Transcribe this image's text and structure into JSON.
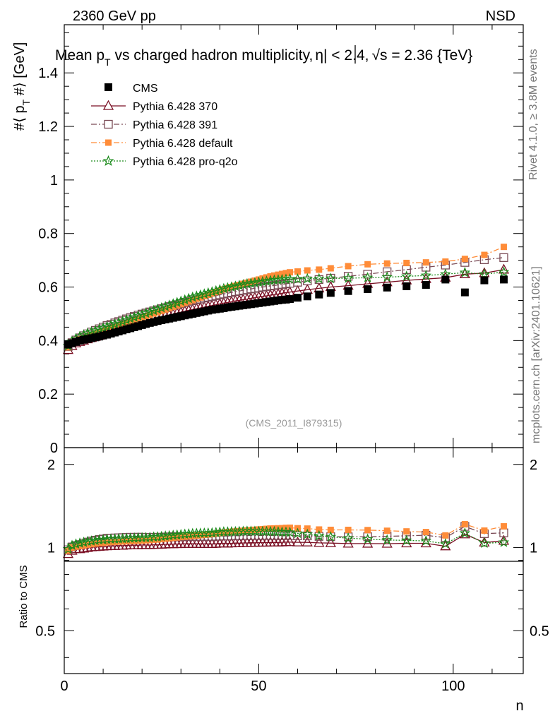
{
  "header": {
    "left": "2360 GeV pp",
    "right": "NSD"
  },
  "side": {
    "rivet": "Rivet 4.1.0, ≥ 3.8M events",
    "mcplots": "mcplots.cern.ch [arXiv:2401.10621]"
  },
  "reference": "(CMS_2011_I879315)",
  "chart_data": {
    "type": "scatter",
    "title": "Mean p_T vs charged hadron multiplicity, |η| < 2.4, √s = 2.36 {TeV}",
    "title_parts": {
      "a": "Mean p",
      "a_sub": "T",
      "b": " vs charged hadron multiplicity,",
      "c": "η| < 2.4,",
      "d": "√s = 2.36 {TeV}"
    },
    "xlabel": "n",
    "ylabel": "#⟨ p_T #⟩ [GeV]",
    "ylabel_parts": {
      "a": "#⟨ p",
      "sub": "T",
      "b": " #⟩ [GeV]"
    },
    "ratio_ylabel": "Ratio to CMS",
    "xlim": [
      0,
      118
    ],
    "ylim": [
      0,
      1.58
    ],
    "ratio_ylim": [
      0.35,
      2.3
    ],
    "x_ticks": [
      0,
      50,
      100
    ],
    "y_ticks": [
      "0",
      "0.2",
      "0.4",
      "0.6",
      "0.8",
      "1",
      "1.2",
      "1.4"
    ],
    "ratio_ticks": [
      "0.5",
      "1",
      "2"
    ],
    "x": [
      1,
      2,
      3,
      4,
      5,
      6,
      7,
      8,
      9,
      10,
      11,
      12,
      13,
      14,
      15,
      16,
      17,
      18,
      19,
      20,
      21,
      22,
      23,
      24,
      25,
      26,
      27,
      28,
      29,
      30,
      31,
      32,
      33,
      34,
      35,
      36,
      37,
      38,
      39,
      40,
      41,
      42,
      43,
      44,
      45,
      46,
      47,
      48,
      49,
      50,
      51,
      52,
      53,
      54,
      55,
      56,
      57,
      58,
      60,
      62.5,
      65.5,
      68.5,
      73,
      78,
      83,
      88,
      93,
      98,
      103,
      108,
      113
    ],
    "series": [
      {
        "name": "CMS",
        "color": "#000000",
        "marker": "filled-square",
        "values": [
          0.385,
          0.39,
          0.395,
          0.4,
          0.403,
          0.406,
          0.409,
          0.412,
          0.415,
          0.419,
          0.422,
          0.426,
          0.43,
          0.434,
          0.438,
          0.442,
          0.446,
          0.45,
          0.454,
          0.458,
          0.462,
          0.466,
          0.469,
          0.473,
          0.476,
          0.479,
          0.482,
          0.485,
          0.488,
          0.491,
          0.494,
          0.497,
          0.5,
          0.503,
          0.506,
          0.509,
          0.512,
          0.515,
          0.517,
          0.519,
          0.521,
          0.524,
          0.526,
          0.528,
          0.53,
          0.532,
          0.534,
          0.536,
          0.538,
          0.54,
          0.542,
          0.544,
          0.546,
          0.548,
          0.55,
          0.552,
          0.553,
          0.555,
          0.56,
          0.565,
          0.572,
          0.578,
          0.585,
          0.592,
          0.598,
          0.603,
          0.608,
          0.628,
          0.58,
          0.625,
          0.628
        ]
      },
      {
        "name": "Pythia 6.428 370",
        "color": "#7a0f23",
        "marker": "open-triangle",
        "line": "solid",
        "values": [
          0.365,
          0.38,
          0.39,
          0.395,
          0.4,
          0.405,
          0.41,
          0.414,
          0.418,
          0.423,
          0.427,
          0.432,
          0.436,
          0.441,
          0.445,
          0.45,
          0.455,
          0.459,
          0.463,
          0.468,
          0.472,
          0.476,
          0.48,
          0.484,
          0.488,
          0.492,
          0.496,
          0.499,
          0.503,
          0.506,
          0.51,
          0.513,
          0.516,
          0.519,
          0.522,
          0.525,
          0.528,
          0.531,
          0.534,
          0.537,
          0.54,
          0.542,
          0.545,
          0.548,
          0.55,
          0.553,
          0.555,
          0.558,
          0.56,
          0.563,
          0.565,
          0.567,
          0.57,
          0.572,
          0.574,
          0.577,
          0.579,
          0.581,
          0.585,
          0.59,
          0.595,
          0.6,
          0.605,
          0.612,
          0.618,
          0.625,
          0.63,
          0.635,
          0.648,
          0.652,
          0.665
        ]
      },
      {
        "name": "Pythia 6.428 391",
        "color": "#7a4a55",
        "marker": "open-square",
        "line": "dashdot",
        "values": [
          0.378,
          0.392,
          0.402,
          0.41,
          0.418,
          0.425,
          0.432,
          0.438,
          0.444,
          0.45,
          0.456,
          0.461,
          0.466,
          0.471,
          0.476,
          0.481,
          0.486,
          0.49,
          0.495,
          0.499,
          0.503,
          0.507,
          0.511,
          0.515,
          0.519,
          0.523,
          0.527,
          0.531,
          0.534,
          0.538,
          0.542,
          0.545,
          0.549,
          0.552,
          0.555,
          0.559,
          0.562,
          0.565,
          0.568,
          0.571,
          0.574,
          0.577,
          0.58,
          0.583,
          0.585,
          0.588,
          0.59,
          0.593,
          0.595,
          0.597,
          0.6,
          0.602,
          0.604,
          0.606,
          0.608,
          0.61,
          0.612,
          0.614,
          0.618,
          0.623,
          0.628,
          0.633,
          0.64,
          0.648,
          0.657,
          0.665,
          0.674,
          0.682,
          0.692,
          0.702,
          0.71
        ]
      },
      {
        "name": "Pythia 6.428 default",
        "color": "#ff8c38",
        "marker": "filled-square",
        "line": "dashdot",
        "values": [
          0.375,
          0.39,
          0.398,
          0.405,
          0.41,
          0.416,
          0.421,
          0.426,
          0.431,
          0.436,
          0.441,
          0.446,
          0.451,
          0.456,
          0.461,
          0.466,
          0.471,
          0.476,
          0.481,
          0.486,
          0.491,
          0.496,
          0.501,
          0.506,
          0.511,
          0.516,
          0.521,
          0.526,
          0.531,
          0.536,
          0.541,
          0.546,
          0.551,
          0.556,
          0.561,
          0.566,
          0.571,
          0.576,
          0.581,
          0.586,
          0.591,
          0.596,
          0.6,
          0.604,
          0.608,
          0.612,
          0.616,
          0.62,
          0.624,
          0.628,
          0.632,
          0.636,
          0.64,
          0.643,
          0.646,
          0.649,
          0.652,
          0.655,
          0.658,
          0.662,
          0.665,
          0.67,
          0.678,
          0.685,
          0.688,
          0.69,
          0.692,
          0.695,
          0.705,
          0.72,
          0.75
        ]
      },
      {
        "name": "Pythia 6.428 pro-q2o",
        "color": "#1a8a1a",
        "marker": "open-star",
        "line": "dotted",
        "values": [
          0.38,
          0.397,
          0.407,
          0.415,
          0.421,
          0.427,
          0.432,
          0.437,
          0.442,
          0.447,
          0.452,
          0.457,
          0.462,
          0.467,
          0.472,
          0.477,
          0.482,
          0.487,
          0.492,
          0.497,
          0.502,
          0.507,
          0.512,
          0.517,
          0.522,
          0.527,
          0.532,
          0.537,
          0.542,
          0.547,
          0.552,
          0.557,
          0.562,
          0.566,
          0.57,
          0.574,
          0.578,
          0.582,
          0.586,
          0.59,
          0.594,
          0.597,
          0.6,
          0.603,
          0.606,
          0.609,
          0.612,
          0.614,
          0.616,
          0.618,
          0.62,
          0.622,
          0.624,
          0.626,
          0.627,
          0.628,
          0.629,
          0.63,
          0.63,
          0.631,
          0.631,
          0.632,
          0.633,
          0.635,
          0.637,
          0.64,
          0.643,
          0.648,
          0.654,
          0.648,
          0.656
        ]
      }
    ]
  }
}
